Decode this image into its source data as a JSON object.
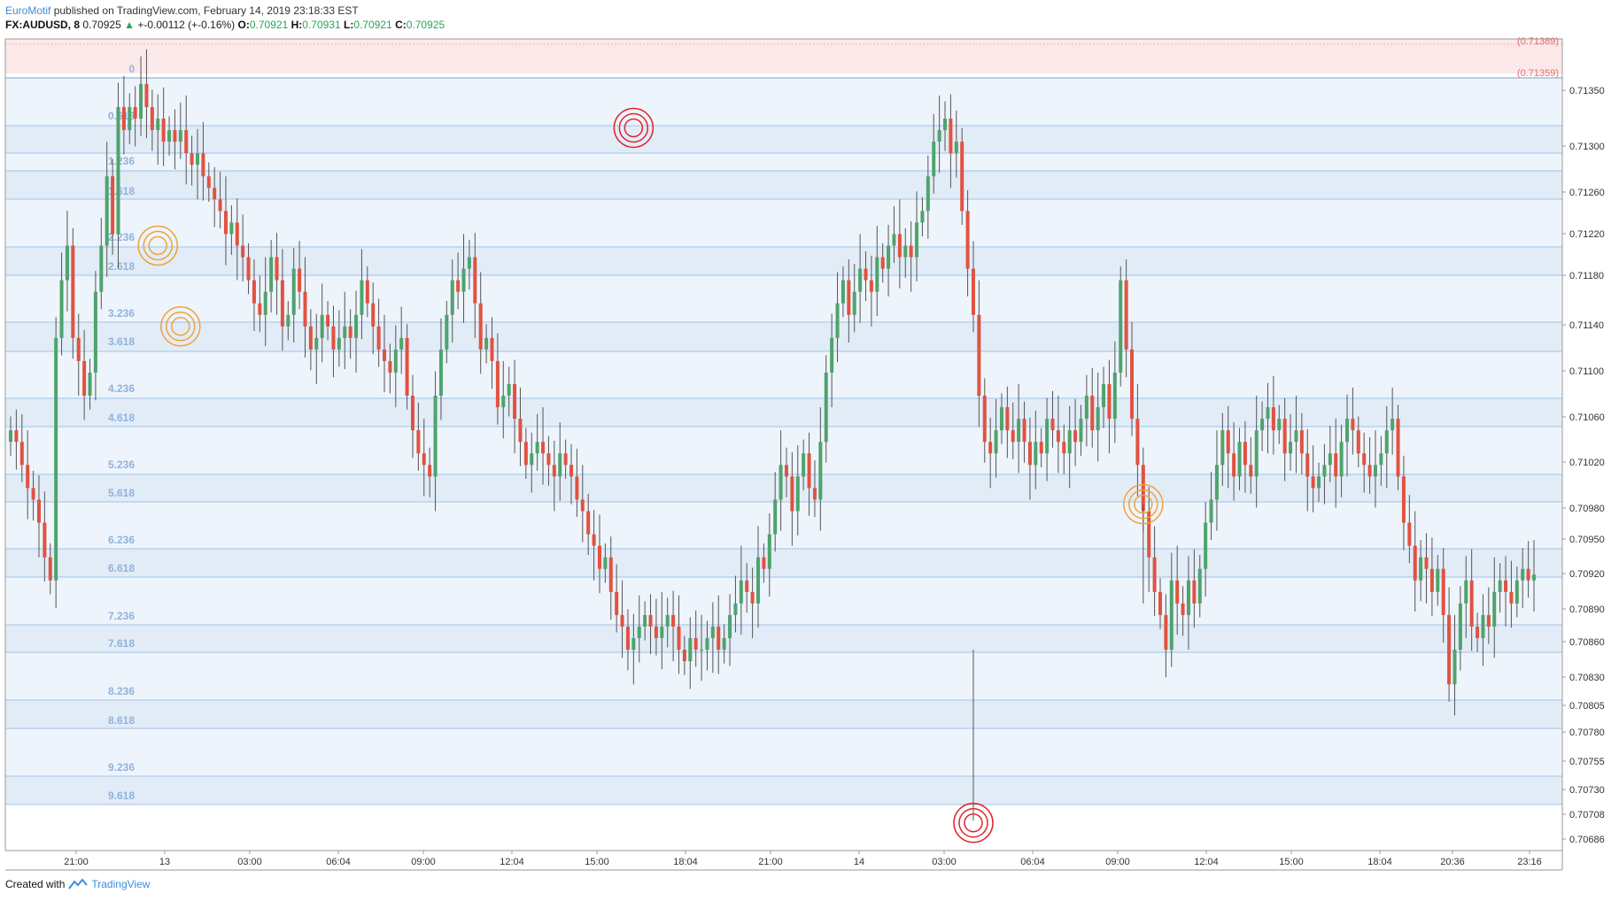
{
  "header": {
    "author": "EuroMotif",
    "published": "published on TradingView.com, February 14, 2019 23:18:33 EST"
  },
  "symbol": {
    "name": "FX:AUDUSD, 8",
    "last": "0.70925",
    "change": "+-0.00112 (+-0.16%)",
    "o_label": "O:",
    "o": "0.70921",
    "h_label": "H:",
    "h": "0.70931",
    "l_label": "L:",
    "l": "0.70921",
    "c_label": "C:",
    "c": "0.70925"
  },
  "footer": {
    "created_with": "Created with",
    "brand": "TradingView"
  },
  "chart_data": {
    "type": "candlestick",
    "ylim": [
      0.70686,
      0.71389
    ],
    "price_ticks": [
      "0.71350",
      "0.71300",
      "0.71260",
      "0.71220",
      "0.71180",
      "0.71140",
      "0.71100",
      "0.71060",
      "0.71020",
      "0.70980",
      "0.70950",
      "0.70920",
      "0.70890",
      "0.70860",
      "0.70830",
      "0.70805",
      "0.70780",
      "0.70755",
      "0.70730",
      "0.70708",
      "0.70686"
    ],
    "time_ticks": [
      "21:00",
      "13",
      "03:00",
      "06:04",
      "09:00",
      "12:04",
      "15:00",
      "18:04",
      "21:00",
      "14",
      "03:00",
      "06:04",
      "09:00",
      "12:04",
      "15:00",
      "18:04",
      "20:36",
      "23:16"
    ],
    "top_price_labels": [
      "(0.71389)",
      "(0.71359)"
    ],
    "fib_levels": [
      "0",
      "0.618",
      "1.236",
      "1.618",
      "2.236",
      "2.618",
      "3.236",
      "3.618",
      "4.236",
      "4.618",
      "5.236",
      "5.618",
      "6.236",
      "6.618",
      "7.236",
      "7.618",
      "8.236",
      "8.618",
      "9.236",
      "9.618"
    ],
    "closes": [
      0.7105,
      0.7104,
      0.7102,
      0.71,
      0.7099,
      0.7097,
      0.7094,
      0.7092,
      0.7113,
      0.7118,
      0.7121,
      0.7113,
      0.7111,
      0.7108,
      0.711,
      0.7117,
      0.7121,
      0.7127,
      0.7122,
      0.7133,
      0.7131,
      0.7133,
      0.7132,
      0.7135,
      0.7133,
      0.7131,
      0.7132,
      0.713,
      0.7131,
      0.713,
      0.7131,
      0.7129,
      0.7128,
      0.7129,
      0.7127,
      0.7126,
      0.7125,
      0.7124,
      0.7122,
      0.7123,
      0.7121,
      0.712,
      0.7118,
      0.7116,
      0.7115,
      0.7117,
      0.712,
      0.7118,
      0.7114,
      0.7115,
      0.7119,
      0.7117,
      0.7114,
      0.7112,
      0.7113,
      0.7115,
      0.7114,
      0.7112,
      0.7113,
      0.7114,
      0.7113,
      0.7115,
      0.7118,
      0.7116,
      0.7114,
      0.7112,
      0.7111,
      0.711,
      0.7112,
      0.7113,
      0.7108,
      0.7105,
      0.7103,
      0.7102,
      0.7101,
      0.7108,
      0.7112,
      0.7115,
      0.7118,
      0.7117,
      0.7119,
      0.712,
      0.7116,
      0.7112,
      0.7113,
      0.7111,
      0.7107,
      0.7108,
      0.7109,
      0.7106,
      0.7104,
      0.7102,
      0.7103,
      0.7104,
      0.7103,
      0.7102,
      0.7101,
      0.7103,
      0.7102,
      0.7101,
      0.7099,
      0.7098,
      0.7096,
      0.7095,
      0.7093,
      0.7094,
      0.7091,
      0.7089,
      0.7088,
      0.7086,
      0.7087,
      0.7088,
      0.7089,
      0.7088,
      0.7087,
      0.7088,
      0.7089,
      0.7088,
      0.7086,
      0.7085,
      0.7087,
      0.7086,
      0.7086,
      0.7087,
      0.7088,
      0.7086,
      0.7087,
      0.7089,
      0.709,
      0.7092,
      0.7091,
      0.709,
      0.7094,
      0.7093,
      0.7096,
      0.7099,
      0.7102,
      0.7101,
      0.7098,
      0.7101,
      0.7103,
      0.71,
      0.7099,
      0.7104,
      0.711,
      0.7113,
      0.7116,
      0.7118,
      0.7115,
      0.7117,
      0.7119,
      0.7118,
      0.7117,
      0.712,
      0.7119,
      0.7121,
      0.7122,
      0.712,
      0.7121,
      0.712,
      0.7123,
      0.7124,
      0.7127,
      0.713,
      0.7131,
      0.7132,
      0.7129,
      0.713,
      0.7124,
      0.7119,
      0.7115,
      0.7108,
      0.7104,
      0.7103,
      0.7105,
      0.7107,
      0.7105,
      0.7104,
      0.7106,
      0.7104,
      0.7102,
      0.7104,
      0.7103,
      0.7106,
      0.7105,
      0.7104,
      0.7103,
      0.7105,
      0.7104,
      0.7106,
      0.7108,
      0.7105,
      0.7107,
      0.7109,
      0.7106,
      0.711,
      0.7118,
      0.7112,
      0.7106,
      0.7102,
      0.7098,
      0.7094,
      0.7091,
      0.7089,
      0.7086,
      0.7092,
      0.709,
      0.7089,
      0.7092,
      0.709,
      0.7093,
      0.7097,
      0.7099,
      0.7102,
      0.7105,
      0.7103,
      0.7101,
      0.7104,
      0.7102,
      0.7101,
      0.7105,
      0.7106,
      0.7107,
      0.7105,
      0.7106,
      0.7103,
      0.7104,
      0.7105,
      0.7103,
      0.7101,
      0.71,
      0.7101,
      0.7102,
      0.7103,
      0.7101,
      0.7104,
      0.7106,
      0.7105,
      0.7103,
      0.7102,
      0.7101,
      0.7102,
      0.7103,
      0.7105,
      0.7106,
      0.7101,
      0.7097,
      0.7095,
      0.7092,
      0.7094,
      0.7093,
      0.7091,
      0.7093,
      0.7089,
      0.7083,
      0.7086,
      0.709,
      0.7092,
      0.7088,
      0.7087,
      0.7089,
      0.7088,
      0.7091,
      0.7092,
      0.7091,
      0.709,
      0.7092,
      0.7093,
      0.7092,
      0.70925
    ],
    "markers": [
      {
        "color": "orange",
        "time_index": 26,
        "price": 0.7121
      },
      {
        "color": "orange",
        "time_index": 30,
        "price": 0.7114
      },
      {
        "color": "red",
        "time_index": 110,
        "price": 0.71312
      },
      {
        "color": "red",
        "time_index": 170,
        "price": 0.7071
      },
      {
        "color": "orange",
        "time_index": 200,
        "price": 0.70986
      }
    ]
  },
  "colors": {
    "up": "#4fa36c",
    "down": "#e15241",
    "fib_line": "#9fc4ea",
    "band_a": "#eef4fb",
    "band_b": "#e2ecf7",
    "red_zone": "#fbe9e9",
    "marker_orange": "#f0a33a",
    "marker_red": "#e0232e"
  }
}
